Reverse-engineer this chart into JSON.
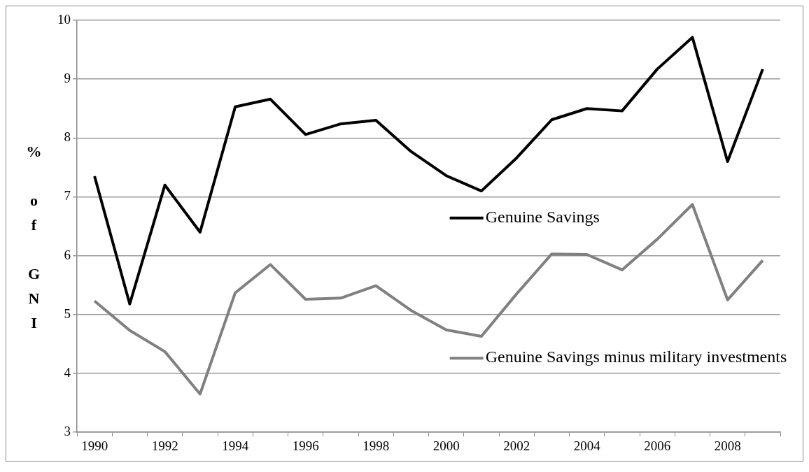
{
  "chart_data": {
    "type": "line",
    "ylabel": "% of GNI",
    "categories": [
      "1990",
      null,
      "1992",
      null,
      "1994",
      null,
      "1996",
      null,
      "1998",
      null,
      "2000",
      null,
      "2002",
      null,
      "2004",
      null,
      "2006",
      null,
      "2008",
      null
    ],
    "series": [
      {
        "name": "Genuine Savings",
        "color": "#000000",
        "values": [
          7.35,
          5.18,
          7.2,
          6.4,
          8.53,
          8.66,
          8.06,
          8.24,
          8.3,
          7.77,
          7.36,
          7.1,
          7.66,
          8.31,
          8.5,
          8.46,
          9.17,
          9.71,
          7.6,
          9.17
        ]
      },
      {
        "name": "Genuine Savings minus military investments",
        "color": "#808080",
        "values": [
          5.23,
          4.73,
          4.37,
          3.65,
          5.37,
          5.85,
          5.26,
          5.28,
          5.49,
          5.07,
          4.74,
          4.63,
          5.35,
          6.03,
          6.02,
          5.76,
          6.28,
          6.87,
          5.25,
          5.92
        ]
      }
    ],
    "ylim": [
      3,
      10
    ],
    "yticks": [
      3,
      4,
      5,
      6,
      7,
      8,
      9,
      10
    ],
    "grid": "y",
    "legend": "center right",
    "marker": "none",
    "line_style": "solid"
  }
}
